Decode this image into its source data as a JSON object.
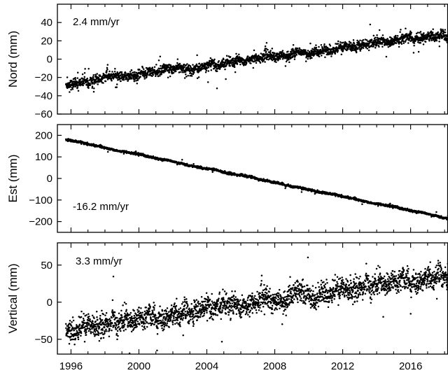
{
  "chart_data": [
    {
      "type": "scatter",
      "ylabel": "Nord (mm)",
      "annotation": "2.4 mm/yr",
      "ylim": [
        -60,
        60
      ],
      "yticks": [
        -60,
        -40,
        -20,
        0,
        20,
        40
      ],
      "xlim": [
        1995.2,
        2018.2
      ],
      "series": [
        {
          "slope_mm_per_yr": 2.4,
          "value_at_1995_7": -27,
          "noise_mm": 2.5,
          "spike_rate": 0.05
        }
      ]
    },
    {
      "type": "scatter",
      "ylabel": "Est (mm)",
      "annotation": "-16.2 mm/yr",
      "ylim": [
        -250,
        250
      ],
      "yticks": [
        -200,
        -100,
        0,
        100,
        200
      ],
      "xlim": [
        1995.2,
        2018.2
      ],
      "series": [
        {
          "slope_mm_per_yr": -16.2,
          "value_at_1995_7": 180,
          "noise_mm": 2.5,
          "spike_rate": 0.02
        }
      ]
    },
    {
      "type": "scatter",
      "ylabel": "Vertical (mm)",
      "annotation": "3.3 mm/yr",
      "ylim": [
        -70,
        80
      ],
      "yticks": [
        -50,
        0,
        50
      ],
      "xlim": [
        1995.2,
        2018.2
      ],
      "series": [
        {
          "slope_mm_per_yr": 3.3,
          "value_at_1995_7": -38,
          "noise_mm": 7,
          "spike_rate": 0.03
        }
      ]
    }
  ],
  "x_axis": {
    "ticks": [
      1996,
      2000,
      2004,
      2008,
      2012,
      2016
    ],
    "range": [
      1995.7,
      2018.2
    ]
  },
  "point_color": "#000000"
}
